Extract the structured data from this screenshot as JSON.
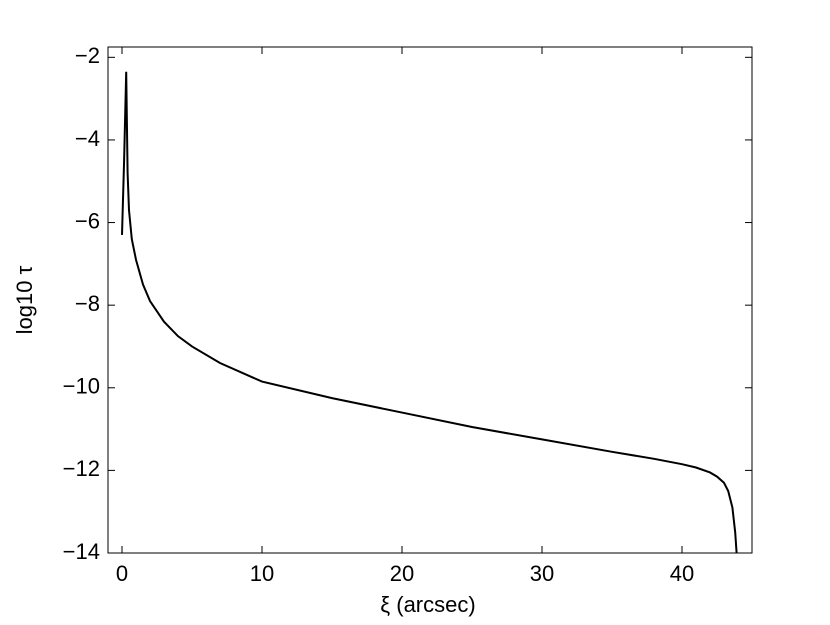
{
  "chart_data": {
    "type": "line",
    "xlabel": "ξ (arcsec)",
    "ylabel": "log10 τ",
    "x": [
      0,
      0.15,
      0.3,
      0.4,
      0.5,
      0.7,
      1,
      1.5,
      2,
      3,
      4,
      5,
      7,
      10,
      15,
      20,
      25,
      30,
      35,
      38,
      40,
      41,
      42,
      42.5,
      43,
      43.3,
      43.6,
      43.8,
      43.9
    ],
    "series": [
      {
        "name": "log10 τ",
        "color": "#000000",
        "values": [
          -6.3,
          -4.5,
          -2.35,
          -4.8,
          -5.7,
          -6.4,
          -6.9,
          -7.5,
          -7.9,
          -8.4,
          -8.75,
          -9.0,
          -9.4,
          -9.85,
          -10.25,
          -10.6,
          -10.95,
          -11.25,
          -11.55,
          -11.72,
          -11.85,
          -11.93,
          -12.05,
          -12.15,
          -12.3,
          -12.5,
          -12.9,
          -13.5,
          -14
        ]
      }
    ],
    "xlim": [
      -1,
      45
    ],
    "ylim": [
      -14,
      -1.75
    ],
    "xticks": [
      0,
      10,
      20,
      30,
      40
    ],
    "yticks": [
      {
        "value": -14,
        "label": "−14"
      },
      {
        "value": -12,
        "label": "−12"
      },
      {
        "value": -10,
        "label": "−10"
      },
      {
        "value": -8,
        "label": "−8"
      },
      {
        "value": -6,
        "label": "−6"
      },
      {
        "value": -4,
        "label": "−4"
      },
      {
        "value": -2,
        "label": "−2"
      }
    ],
    "grid": false
  }
}
